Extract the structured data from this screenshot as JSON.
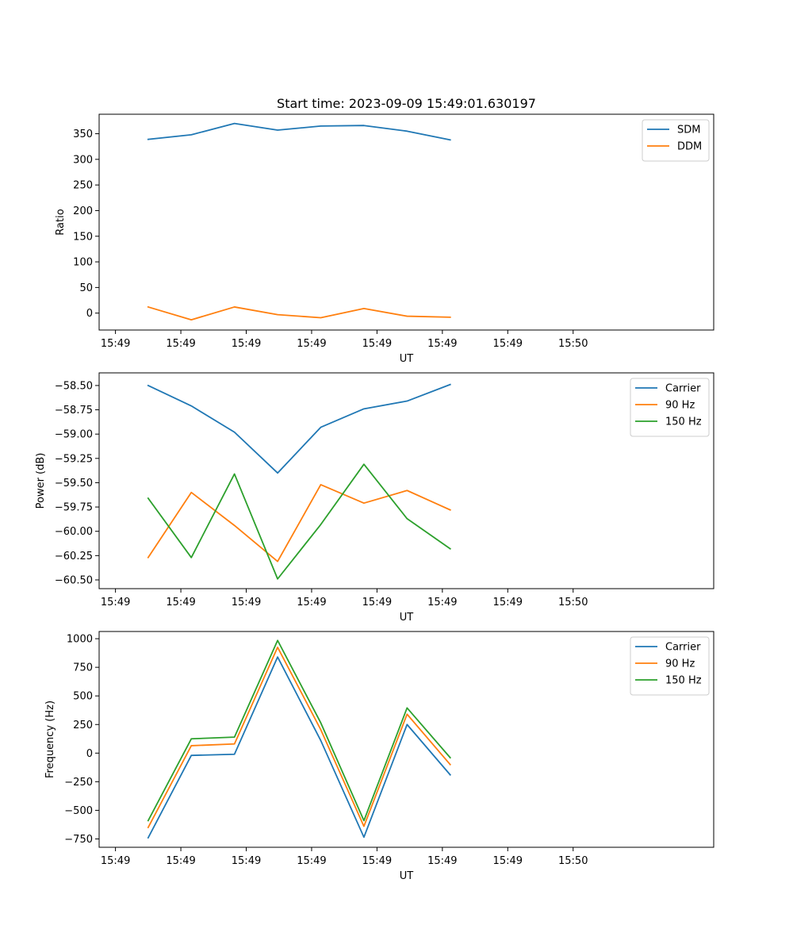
{
  "chart_data": [
    {
      "type": "line",
      "title": "Start time: 2023-09-09 15:49:01.630197",
      "xlabel": "UT",
      "ylabel": "Ratio",
      "xlim": [
        0,
        9.4
      ],
      "ylim": [
        -33,
        388
      ],
      "xticks": [
        0.25,
        1.25,
        2.25,
        3.25,
        4.25,
        5.25,
        6.25,
        7.25
      ],
      "xtick_labels": [
        "15:49",
        "15:49",
        "15:49",
        "15:49",
        "15:49",
        "15:49",
        "15:49",
        "15:50"
      ],
      "yticks": [
        0,
        50,
        100,
        150,
        200,
        250,
        300,
        350
      ],
      "ytick_labels": [
        "0",
        "50",
        "100",
        "150",
        "200",
        "250",
        "300",
        "350"
      ],
      "x": [
        0.75,
        1.41,
        2.07,
        2.73,
        3.39,
        4.05,
        4.71,
        5.37
      ],
      "legend_position": "top-right",
      "series": [
        {
          "name": "SDM",
          "color": "#1f77b4",
          "values": [
            339,
            348,
            370,
            357,
            365,
            366,
            355,
            338
          ]
        },
        {
          "name": "DDM",
          "color": "#ff7f0e",
          "values": [
            12,
            -13,
            12,
            -3,
            -9,
            9,
            -6,
            -8
          ]
        }
      ]
    },
    {
      "type": "line",
      "title": "",
      "xlabel": "UT",
      "ylabel": "Power (dB)",
      "xlim": [
        0,
        9.4
      ],
      "ylim": [
        -60.59,
        -58.37
      ],
      "xticks": [
        0.25,
        1.25,
        2.25,
        3.25,
        4.25,
        5.25,
        6.25,
        7.25
      ],
      "xtick_labels": [
        "15:49",
        "15:49",
        "15:49",
        "15:49",
        "15:49",
        "15:49",
        "15:49",
        "15:50"
      ],
      "yticks": [
        -60.5,
        -60.25,
        -60.0,
        -59.75,
        -59.5,
        -59.25,
        -59.0,
        -58.75,
        -58.5
      ],
      "ytick_labels": [
        "−60.50",
        "−60.25",
        "−60.00",
        "−59.75",
        "−59.50",
        "−59.25",
        "−59.00",
        "−58.75",
        "−58.50"
      ],
      "x": [
        0.75,
        1.41,
        2.07,
        2.73,
        3.39,
        4.05,
        4.71,
        5.37
      ],
      "legend_position": "top-right",
      "series": [
        {
          "name": "Carrier",
          "color": "#1f77b4",
          "values": [
            -58.5,
            -58.71,
            -58.98,
            -59.4,
            -58.93,
            -58.74,
            -58.66,
            -58.49
          ]
        },
        {
          "name": "90 Hz",
          "color": "#ff7f0e",
          "values": [
            -60.27,
            -59.6,
            -59.94,
            -60.31,
            -59.52,
            -59.71,
            -59.58,
            -59.78
          ]
        },
        {
          "name": "150 Hz",
          "color": "#2ca02c",
          "values": [
            -59.66,
            -60.27,
            -59.41,
            -60.49,
            -59.93,
            -59.31,
            -59.87,
            -60.18
          ]
        }
      ]
    },
    {
      "type": "line",
      "title": "",
      "xlabel": "UT",
      "ylabel": "Frequency (Hz)",
      "xlim": [
        0,
        9.4
      ],
      "ylim": [
        -823,
        1063
      ],
      "xticks": [
        0.25,
        1.25,
        2.25,
        3.25,
        4.25,
        5.25,
        6.25,
        7.25
      ],
      "xtick_labels": [
        "15:49",
        "15:49",
        "15:49",
        "15:49",
        "15:49",
        "15:49",
        "15:49",
        "15:50"
      ],
      "yticks": [
        -750,
        -500,
        -250,
        0,
        250,
        500,
        750,
        1000
      ],
      "ytick_labels": [
        "−750",
        "−500",
        "−250",
        "0",
        "250",
        "500",
        "750",
        "1000"
      ],
      "x": [
        0.75,
        1.41,
        2.07,
        2.73,
        3.39,
        4.05,
        4.71,
        5.37
      ],
      "legend_position": "top-right",
      "series": [
        {
          "name": "Carrier",
          "color": "#1f77b4",
          "values": [
            -740,
            -20,
            -10,
            840,
            110,
            -735,
            250,
            -190
          ]
        },
        {
          "name": "90 Hz",
          "color": "#ff7f0e",
          "values": [
            -650,
            65,
            80,
            925,
            205,
            -640,
            340,
            -100
          ]
        },
        {
          "name": "150 Hz",
          "color": "#2ca02c",
          "values": [
            -590,
            125,
            140,
            985,
            265,
            -590,
            395,
            -40
          ]
        }
      ]
    }
  ]
}
